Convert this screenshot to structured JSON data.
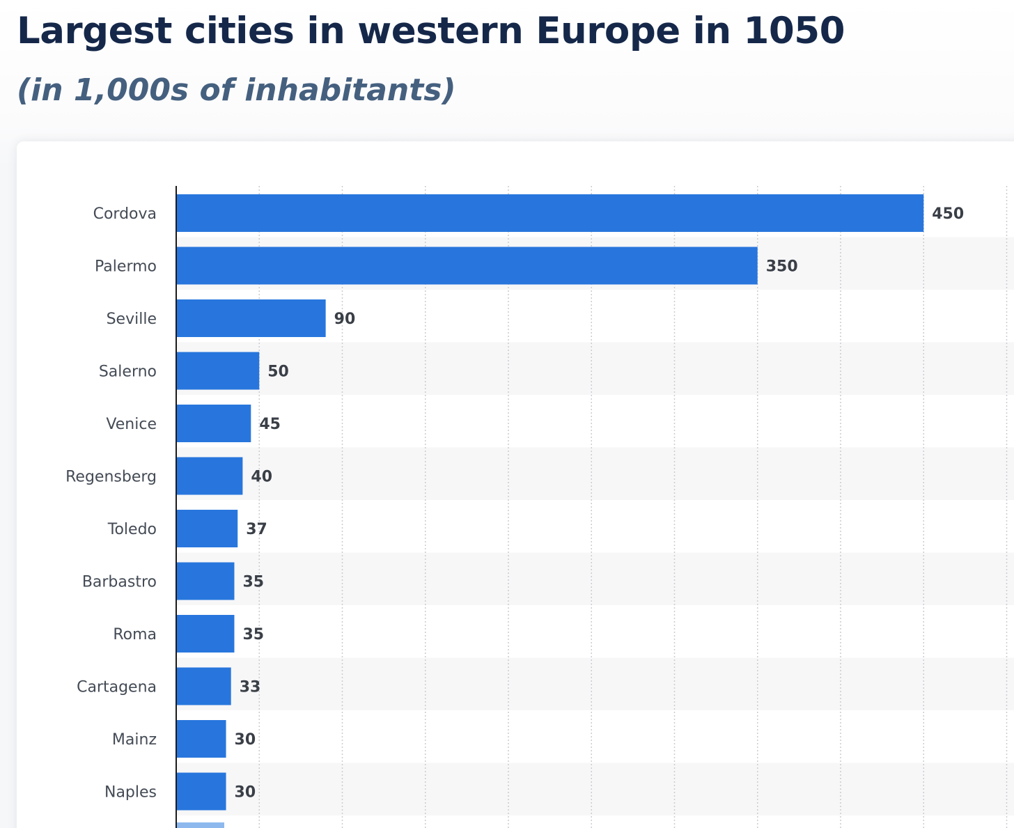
{
  "title": "Largest cities in western Europe in 1050",
  "subtitle": "(in 1,000s of inhabitants)",
  "colors": {
    "bar": "#2876dd",
    "title": "#15284a",
    "subtitle": "#45607f",
    "grid": "#c9ccd1",
    "band": "#f7f7f8"
  },
  "chart_data": {
    "type": "bar",
    "orientation": "horizontal",
    "title": "Largest cities in western Europe in 1050",
    "subtitle": "(in 1,000s of inhabitants)",
    "categories": [
      "Cordova",
      "Palermo",
      "Seville",
      "Salerno",
      "Venice",
      "Regensberg",
      "Toledo",
      "Barbastro",
      "Roma",
      "Cartagena",
      "Mainz",
      "Naples"
    ],
    "values": [
      450,
      350,
      90,
      50,
      45,
      40,
      37,
      35,
      35,
      33,
      30,
      30
    ],
    "xlim": [
      0,
      500
    ],
    "grid": true,
    "data_labels": true
  }
}
